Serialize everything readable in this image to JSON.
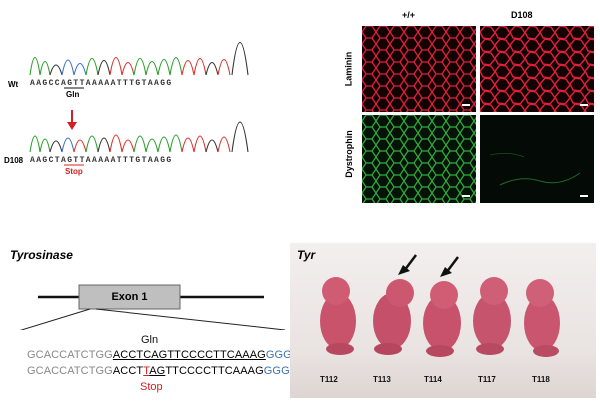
{
  "chromatogram": {
    "wt_label": "Wt",
    "wt_sequence": "AAGCCAGTTAAAAATTTGTAAGG",
    "wt_codon_label": "Gln",
    "mut_label": "D108",
    "mut_sequence": "AAGCTAGTTAAAAATTTGTAAGG",
    "mut_codon_label": "Stop"
  },
  "histology": {
    "col_wt": "+/+",
    "col_mut": "D108",
    "row_1": "Laminin",
    "row_2": "Dystrophin"
  },
  "gene_diagram": {
    "title": "Tyrosinase",
    "exon_label": "Exon 1",
    "codon_wt": "Gln",
    "codon_mut": "Stop",
    "wt_seq": {
      "prefix": "GCACCATCTGG",
      "pre_codon": "ACCT",
      "codon": "CAG",
      "post_codon": "TTCCCCTTCAAAG",
      "pam": "GGG"
    },
    "mut_seq": {
      "prefix": "GCACCATCTGG",
      "pre_codon": "ACCT",
      "codon_t": "T",
      "codon_rest": "AG",
      "post_codon": "TTCCCCTTCAAAG",
      "pam": "GGG"
    }
  },
  "photo": {
    "title": "Tyr",
    "mice": [
      "T112",
      "T113",
      "T114",
      "T117",
      "T118"
    ]
  },
  "colors": {
    "red": "#d42020",
    "blue": "#3a6fb0",
    "grey": "#888888",
    "laminin": "#e0203a",
    "dystrophin": "#2fae3a"
  }
}
